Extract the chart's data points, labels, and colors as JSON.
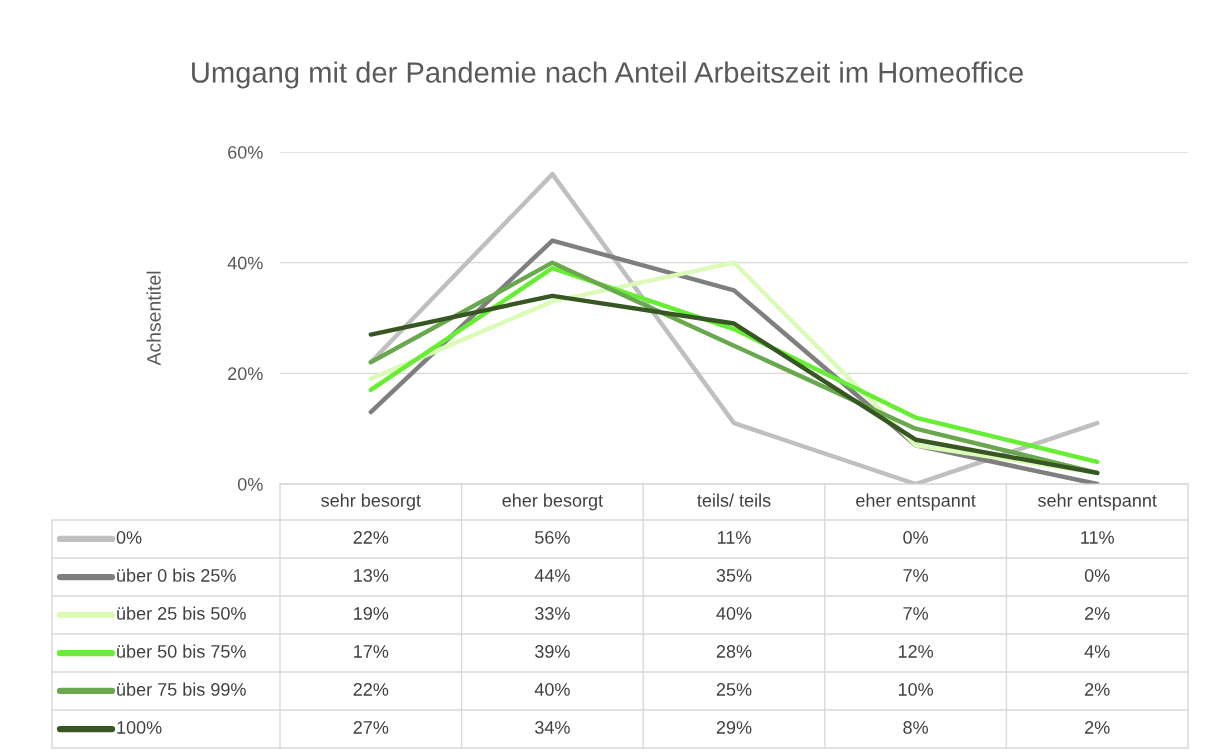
{
  "chart_data": {
    "type": "line",
    "title": "Umgang mit der Pandemie nach Anteil Arbeitszeit im Homeoffice",
    "ylabel": "Achsentitel",
    "categories": [
      "sehr besorgt",
      "eher besorgt",
      "teils/ teils",
      "eher entspannt",
      "sehr entspannt"
    ],
    "series": [
      {
        "name": "0%",
        "color": "#bfbfbf",
        "values": [
          22,
          56,
          11,
          0,
          11
        ],
        "value_labels": [
          "22%",
          "56%",
          "11%",
          "0%",
          "11%"
        ]
      },
      {
        "name": "über 0 bis 25%",
        "color": "#7f7f7f",
        "values": [
          13,
          44,
          35,
          7,
          0
        ],
        "value_labels": [
          "13%",
          "44%",
          "35%",
          "7%",
          "0%"
        ]
      },
      {
        "name": "über 25 bis 50%",
        "color": "#dcfbb8",
        "values": [
          19,
          33,
          40,
          7,
          2
        ],
        "value_labels": [
          "19%",
          "33%",
          "40%",
          "7%",
          "2%"
        ]
      },
      {
        "name": "über 50 bis 75%",
        "color": "#66ee33",
        "values": [
          17,
          39,
          28,
          12,
          4
        ],
        "value_labels": [
          "17%",
          "39%",
          "28%",
          "12%",
          "4%"
        ]
      },
      {
        "name": "über 75 bis 99%",
        "color": "#6aa84f",
        "values": [
          22,
          40,
          25,
          10,
          2
        ],
        "value_labels": [
          "22%",
          "40%",
          "25%",
          "10%",
          "2%"
        ]
      },
      {
        "name": "100%",
        "color": "#375623",
        "values": [
          27,
          34,
          29,
          8,
          2
        ],
        "value_labels": [
          "27%",
          "34%",
          "29%",
          "8%",
          "2%"
        ]
      }
    ],
    "ylim": [
      0,
      60
    ],
    "yticks": [
      {
        "value": 0,
        "label": "0%"
      },
      {
        "value": 20,
        "label": "20%"
      },
      {
        "value": 40,
        "label": "40%"
      },
      {
        "value": 60,
        "label": "60%"
      }
    ],
    "grid": "y",
    "legend": "bottom",
    "marker": "none",
    "line_style": "solid"
  }
}
